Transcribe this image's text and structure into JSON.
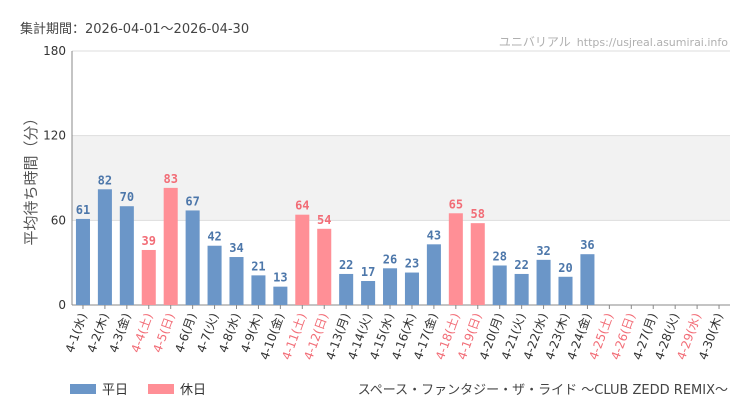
{
  "header": {
    "period": "集計期間：2026-04-01～2026-04-30",
    "site_name": "ユニバリアル",
    "site_url": "https://usjreal.asumirai.info"
  },
  "footer": {
    "attraction": "スペース・ファンタジー・ザ・ライド 〜CLUB ZEDD REMIX〜"
  },
  "colors": {
    "weekday": "#6b96c8",
    "holiday": "#ff8f96",
    "weekday_label": "#4d77aa",
    "holiday_label": "#f26d77",
    "holiday_tick": "#f26d77",
    "band": "#f2f2f2"
  },
  "chart_data": {
    "type": "bar",
    "ylabel": "平均待ち時間（分）",
    "ylim": [
      0,
      180
    ],
    "yticks": [
      0,
      60,
      120,
      180
    ],
    "shaded_band": [
      60,
      120
    ],
    "legend": [
      {
        "name": "平日",
        "kind": "weekday"
      },
      {
        "name": "休日",
        "kind": "holiday"
      }
    ],
    "categories": [
      "4-1(水)",
      "4-2(木)",
      "4-3(金)",
      "4-4(土)",
      "4-5(日)",
      "4-6(月)",
      "4-7(火)",
      "4-8(水)",
      "4-9(木)",
      "4-10(金)",
      "4-11(土)",
      "4-12(日)",
      "4-13(月)",
      "4-14(火)",
      "4-15(水)",
      "4-16(木)",
      "4-17(金)",
      "4-18(土)",
      "4-19(日)",
      "4-20(月)",
      "4-21(火)",
      "4-22(水)",
      "4-23(木)",
      "4-24(金)",
      "4-25(土)",
      "4-26(日)",
      "4-27(月)",
      "4-28(火)",
      "4-29(水)",
      "4-30(木)"
    ],
    "values": [
      61,
      82,
      70,
      39,
      83,
      67,
      42,
      34,
      21,
      13,
      64,
      54,
      22,
      17,
      26,
      23,
      43,
      65,
      58,
      28,
      22,
      32,
      20,
      36,
      null,
      null,
      null,
      null,
      null,
      null
    ],
    "holiday": [
      false,
      false,
      false,
      true,
      true,
      false,
      false,
      false,
      false,
      false,
      true,
      true,
      false,
      false,
      false,
      false,
      false,
      true,
      true,
      false,
      false,
      false,
      false,
      false,
      true,
      true,
      false,
      false,
      true,
      false
    ]
  }
}
